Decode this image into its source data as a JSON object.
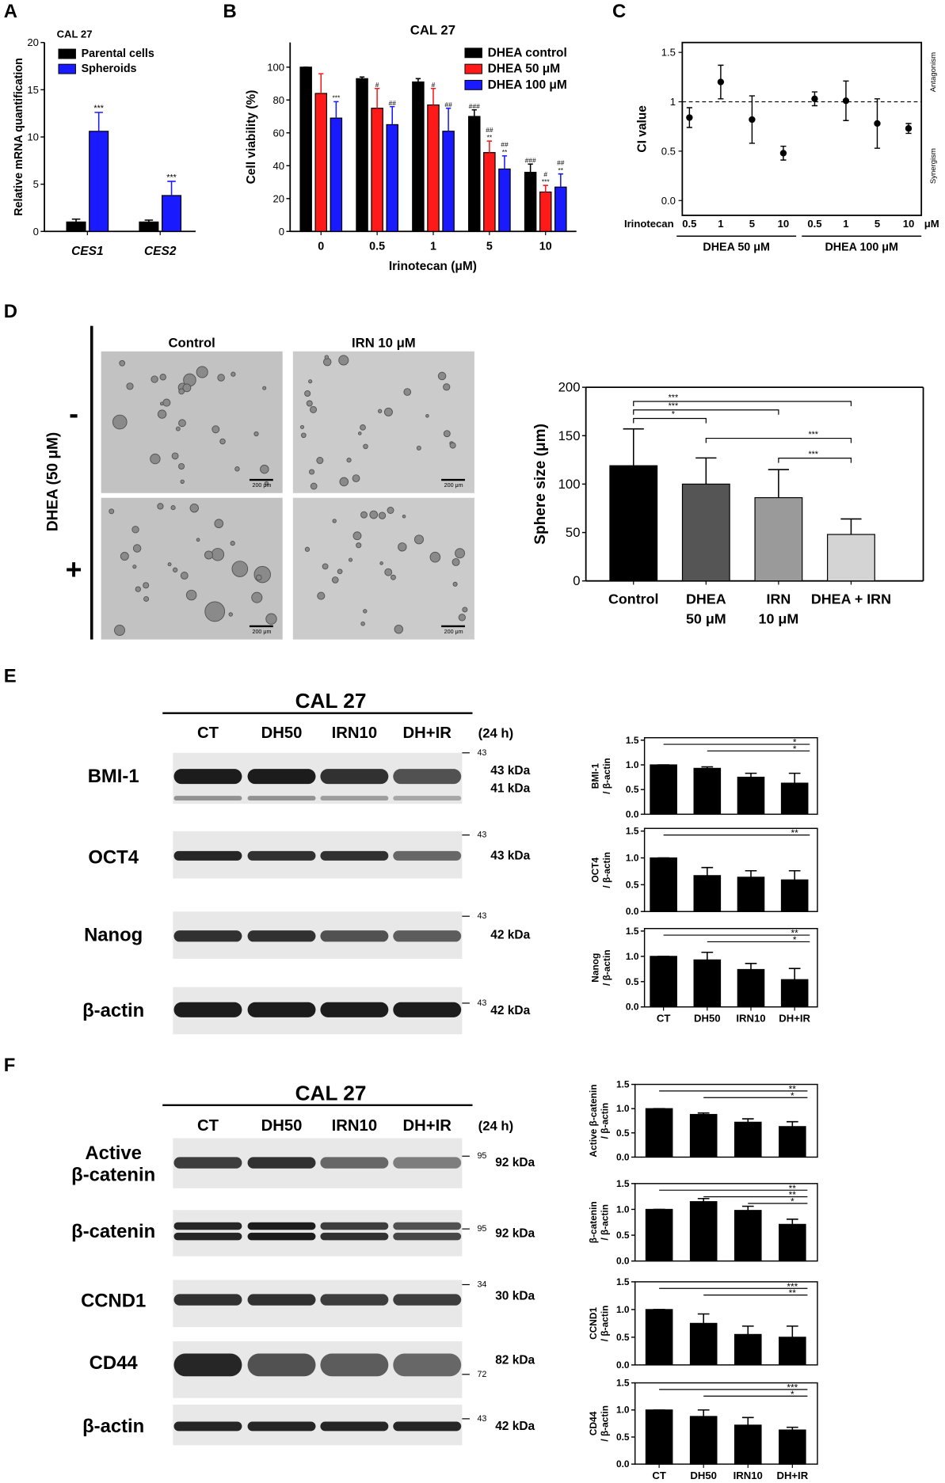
{
  "panel_letters": [
    "A",
    "B",
    "C",
    "D",
    "E",
    "F"
  ],
  "chart_data": [
    {
      "type": "bar",
      "title": "CAL 27",
      "ylabel": "Relative mRNA quantification",
      "categories": [
        "CES1",
        "CES2"
      ],
      "ylim": [
        0,
        20
      ],
      "yticks": [
        0,
        5,
        10,
        15,
        20
      ],
      "legend": "upper left",
      "series": [
        {
          "name": "Parental cells",
          "color": "#000000",
          "values": [
            1.0,
            1.0
          ],
          "errors": [
            0.3,
            0.2
          ]
        },
        {
          "name": "Spheroids",
          "color": "#1a1aff",
          "values": [
            10.6,
            3.8
          ],
          "errors": [
            2.0,
            1.5
          ],
          "labels": [
            [
              "***"
            ],
            [
              "***"
            ]
          ]
        }
      ]
    },
    {
      "type": "bar",
      "title": "CAL 27",
      "xlabel": "Irinotecan (μM)",
      "ylabel": "Cell viability (%)",
      "categories": [
        "0",
        "0.5",
        "1",
        "5",
        "10"
      ],
      "ylim": [
        0,
        115
      ],
      "yticks": [
        0,
        20,
        40,
        60,
        80,
        100
      ],
      "legend": "upper right",
      "series": [
        {
          "name": "DHEA control",
          "color": "#000000",
          "values": [
            100,
            93,
            91,
            70,
            36
          ],
          "errors": [
            0,
            1,
            2,
            4,
            5
          ],
          "labels": [
            null,
            null,
            null,
            [
              "###"
            ],
            [
              "###"
            ]
          ]
        },
        {
          "name": "DHEA 50 μM",
          "color": "#ff1a1a",
          "values": [
            84,
            75,
            77,
            48,
            24
          ],
          "errors": [
            12,
            12,
            10,
            7,
            4
          ],
          "labels": [
            null,
            [
              "#"
            ],
            [
              "#"
            ],
            [
              "##",
              "**"
            ],
            [
              "#",
              "***"
            ]
          ]
        },
        {
          "name": "DHEA 100 μM",
          "color": "#1a1aff",
          "values": [
            69,
            65,
            61,
            38,
            27
          ],
          "errors": [
            10,
            11,
            14,
            8,
            8
          ],
          "labels": [
            [
              "***"
            ],
            [
              "##"
            ],
            [
              "##"
            ],
            [
              "##",
              "**"
            ],
            [
              "##",
              "**"
            ]
          ]
        }
      ]
    },
    {
      "type": "errorbar",
      "ylabel": "CI value",
      "x_title": "Irinotecan",
      "x_unit": "μM",
      "categories": [
        "0.5",
        "1",
        "5",
        "10",
        "0.5",
        "1",
        "5",
        "10"
      ],
      "groups": [
        "DHEA 50 μM",
        "DHEA 100 μM"
      ],
      "ylim": [
        -0.15,
        1.6
      ],
      "yticks": [
        {
          "value": 0,
          "label": "0.0"
        },
        0.5,
        1,
        1.5
      ],
      "reference_line": 1,
      "zones": [
        "Antagonism",
        "Synergism"
      ],
      "series": [
        {
          "color": "#000000",
          "values": [
            0.84,
            1.2,
            0.82,
            0.48,
            1.03,
            1.01,
            0.78,
            0.73
          ],
          "errors": [
            0.1,
            0.17,
            0.24,
            0.07,
            0.07,
            0.2,
            0.25,
            0.05
          ]
        }
      ]
    },
    {
      "type": "bar",
      "ylabel": "Sphere size (μm)",
      "categories": [
        "Control",
        [
          "DHEA",
          "50 μM"
        ],
        [
          "IRN",
          "10 μM"
        ],
        "DHEA + IRN"
      ],
      "ylim": [
        0,
        200
      ],
      "yticks": [
        0,
        50,
        100,
        150,
        200
      ],
      "series": [
        {
          "colors": [
            "#000000",
            "#555555",
            "#9a9a9a",
            "#d4d4d4"
          ],
          "values": [
            119,
            100,
            86,
            48
          ],
          "errors": [
            38,
            27,
            29,
            16
          ]
        }
      ],
      "significance": [
        {
          "pair": [
            0,
            3
          ],
          "label": "***"
        },
        {
          "pair": [
            0,
            2
          ],
          "label": "***"
        },
        {
          "pair": [
            0,
            1
          ],
          "label": "*"
        },
        {
          "pair": [
            1,
            3
          ],
          "label": "***"
        },
        {
          "pair": [
            2,
            3
          ],
          "label": "***"
        }
      ]
    },
    {
      "type": "bar",
      "ylabel": [
        "BMI-1",
        "/ β-actin"
      ],
      "ylim": [
        0,
        1.55
      ],
      "yticks": [
        {
          "value": 0,
          "label": "0.0"
        },
        0.5,
        {
          "value": 1,
          "label": "1.0"
        },
        1.5
      ],
      "series": [
        {
          "color": "#000000",
          "values": [
            1.0,
            0.93,
            0.75,
            0.63
          ],
          "errors": [
            0,
            0.03,
            0.08,
            0.2
          ]
        }
      ],
      "significance": [
        {
          "pair": [
            0,
            3
          ],
          "label": "*"
        },
        {
          "pair": [
            1,
            3
          ],
          "label": "*"
        }
      ]
    },
    {
      "type": "bar",
      "ylabel": [
        "OCT4",
        "/ β-actin"
      ],
      "ylim": [
        0,
        1.55
      ],
      "yticks": [
        {
          "value": 0,
          "label": "0.0"
        },
        0.5,
        {
          "value": 1,
          "label": "1.0"
        },
        1.5
      ],
      "series": [
        {
          "color": "#000000",
          "values": [
            1.0,
            0.67,
            0.64,
            0.59
          ],
          "errors": [
            0,
            0.15,
            0.12,
            0.17
          ]
        }
      ],
      "significance": [
        {
          "pair": [
            0,
            3
          ],
          "label": "**"
        }
      ]
    },
    {
      "type": "bar",
      "ylabel": [
        "Nanog",
        "/ β-actin"
      ],
      "categories": [
        "CT",
        "DH50",
        "IRN10",
        "DH+IR"
      ],
      "ylim": [
        0,
        1.55
      ],
      "yticks": [
        {
          "value": 0,
          "label": "0.0"
        },
        0.5,
        {
          "value": 1,
          "label": "1.0"
        },
        1.5
      ],
      "series": [
        {
          "color": "#000000",
          "values": [
            1.0,
            0.93,
            0.74,
            0.54
          ],
          "errors": [
            0,
            0.15,
            0.12,
            0.22
          ]
        }
      ],
      "significance": [
        {
          "pair": [
            0,
            3
          ],
          "label": "**"
        },
        {
          "pair": [
            1,
            3
          ],
          "label": "*"
        }
      ]
    },
    {
      "type": "bar",
      "ylabel": [
        "Active β-catenin",
        "/ β-actin"
      ],
      "ylim": [
        0,
        1.5
      ],
      "yticks": [
        {
          "value": 0,
          "label": "0.0"
        },
        0.5,
        {
          "value": 1,
          "label": "1.0"
        },
        1.5
      ],
      "series": [
        {
          "color": "#000000",
          "values": [
            1.0,
            0.88,
            0.72,
            0.63
          ],
          "errors": [
            0,
            0.03,
            0.07,
            0.1
          ]
        }
      ],
      "significance": [
        {
          "pair": [
            0,
            3
          ],
          "label": "**"
        },
        {
          "pair": [
            1,
            3
          ],
          "label": "*"
        }
      ]
    },
    {
      "type": "bar",
      "ylabel": [
        "β-catenin",
        "/ β-actin"
      ],
      "ylim": [
        0,
        1.5
      ],
      "yticks": [
        {
          "value": 0,
          "label": "0.0"
        },
        0.5,
        {
          "value": 1,
          "label": "1.0"
        },
        1.5
      ],
      "series": [
        {
          "color": "#000000",
          "values": [
            1.0,
            1.15,
            0.98,
            0.71
          ],
          "errors": [
            0,
            0.06,
            0.08,
            0.1
          ]
        }
      ],
      "significance": [
        {
          "pair": [
            0,
            3
          ],
          "label": "**"
        },
        {
          "pair": [
            1,
            3
          ],
          "label": "**"
        },
        {
          "pair": [
            2,
            3
          ],
          "label": "*"
        }
      ]
    },
    {
      "type": "bar",
      "ylabel": [
        "CCND1",
        "/ β-actin"
      ],
      "ylim": [
        0,
        1.5
      ],
      "yticks": [
        {
          "value": 0,
          "label": "0.0"
        },
        0.5,
        {
          "value": 1,
          "label": "1.0"
        },
        1.5
      ],
      "series": [
        {
          "color": "#000000",
          "values": [
            1.0,
            0.75,
            0.55,
            0.5
          ],
          "errors": [
            0,
            0.17,
            0.15,
            0.2
          ]
        }
      ],
      "significance": [
        {
          "pair": [
            0,
            3
          ],
          "label": "***"
        },
        {
          "pair": [
            1,
            3
          ],
          "label": "**"
        }
      ]
    },
    {
      "type": "bar",
      "ylabel": [
        "CD44",
        "/ β-actin"
      ],
      "categories": [
        "CT",
        "DH50",
        "IRN10",
        "DH+IR"
      ],
      "ylim": [
        0,
        1.5
      ],
      "yticks": [
        {
          "value": 0,
          "label": "0.0"
        },
        0.5,
        {
          "value": 1,
          "label": "1.0"
        },
        1.5
      ],
      "series": [
        {
          "color": "#000000",
          "values": [
            1.0,
            0.88,
            0.72,
            0.63
          ],
          "errors": [
            0,
            0.12,
            0.14,
            0.05
          ]
        }
      ],
      "significance": [
        {
          "pair": [
            0,
            3
          ],
          "label": "***"
        },
        {
          "pair": [
            1,
            3
          ],
          "label": "*"
        }
      ]
    }
  ],
  "micrographs": {
    "columns": [
      "Control",
      "IRN 10 μM"
    ],
    "row_title": "DHEA (50 μM)",
    "rows": [
      "-",
      "+"
    ],
    "scale_bar": "200 μm"
  },
  "blots": [
    {
      "title": "CAL 27",
      "lanes": [
        "CT",
        "DH50",
        "IRN10",
        "DH+IR"
      ],
      "time": "(24 h)",
      "rows": [
        {
          "label": [
            "BMI-1"
          ],
          "sizes": [
            "43 kDa",
            "41 kDa"
          ],
          "markers": [
            "43"
          ]
        },
        {
          "label": [
            "OCT4"
          ],
          "sizes": [
            "43 kDa"
          ],
          "markers": [
            "43"
          ]
        },
        {
          "label": [
            "Nanog"
          ],
          "sizes": [
            "42 kDa"
          ],
          "markers": [
            "43"
          ]
        },
        {
          "label": [
            "β-actin"
          ],
          "sizes": [
            "42 kDa"
          ],
          "markers": [
            "43"
          ]
        }
      ]
    },
    {
      "title": "CAL 27",
      "lanes": [
        "CT",
        "DH50",
        "IRN10",
        "DH+IR"
      ],
      "time": "(24 h)",
      "rows": [
        {
          "label": [
            "Active",
            "β-catenin"
          ],
          "sizes": [
            "92 kDa"
          ],
          "markers": [
            "95"
          ]
        },
        {
          "label": [
            "β-catenin"
          ],
          "sizes": [
            "92 kDa"
          ],
          "markers": [
            "95"
          ]
        },
        {
          "label": [
            "CCND1"
          ],
          "sizes": [
            "30 kDa"
          ],
          "markers": [
            "34"
          ]
        },
        {
          "label": [
            "CD44"
          ],
          "sizes": [
            "82 kDa"
          ],
          "markers": [
            "72"
          ]
        },
        {
          "label": [
            "β-actin"
          ],
          "sizes": [
            "42 kDa"
          ],
          "markers": [
            "43"
          ]
        }
      ]
    }
  ]
}
